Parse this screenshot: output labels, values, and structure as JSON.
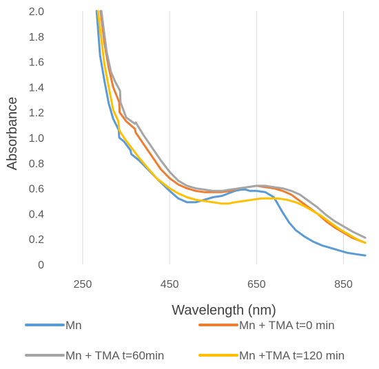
{
  "chart_data": {
    "type": "line",
    "title": "",
    "xlabel": "Wavelength (nm)",
    "ylabel": "Absorbance",
    "xlim": [
      250,
      900
    ],
    "ylim": [
      0,
      2.0
    ],
    "x_ticks": [
      "250",
      "450",
      "650",
      "850"
    ],
    "y_ticks": [
      "0",
      "0.2",
      "0.4",
      "0.6",
      "0.8",
      "1.0",
      "1.2",
      "1.4",
      "1.6",
      "1.8",
      "2.0"
    ],
    "grid": "vertical",
    "legend_position": "bottom",
    "series": [
      {
        "name": "Mn",
        "color": "#5B9BD5",
        "x": [
          282,
          290,
          300,
          310,
          320,
          333,
          334,
          345,
          360,
          362,
          380,
          400,
          420,
          450,
          470,
          490,
          510,
          530,
          550,
          570,
          585,
          600,
          615,
          625,
          635,
          650,
          670,
          690,
          700,
          710,
          725,
          740,
          760,
          780,
          800,
          820,
          840,
          860,
          880,
          900
        ],
        "y": [
          2.0,
          1.65,
          1.45,
          1.27,
          1.15,
          1.06,
          1.0,
          0.97,
          0.9,
          0.87,
          0.82,
          0.75,
          0.68,
          0.58,
          0.52,
          0.49,
          0.49,
          0.51,
          0.53,
          0.54,
          0.56,
          0.58,
          0.59,
          0.59,
          0.58,
          0.58,
          0.57,
          0.53,
          0.47,
          0.41,
          0.33,
          0.27,
          0.22,
          0.18,
          0.15,
          0.13,
          0.11,
          0.09,
          0.08,
          0.07
        ]
      },
      {
        "name": "Mn + TMA t=0 min",
        "color": "#ED7D31",
        "x": [
          291,
          300,
          310,
          320,
          334,
          335,
          350,
          370,
          372,
          390,
          410,
          430,
          450,
          470,
          490,
          510,
          530,
          550,
          570,
          590,
          610,
          630,
          650,
          670,
          690,
          710,
          730,
          750,
          770,
          790,
          810,
          830,
          850,
          870,
          900
        ],
        "y": [
          2.0,
          1.75,
          1.55,
          1.4,
          1.28,
          1.2,
          1.13,
          1.07,
          1.04,
          0.95,
          0.85,
          0.75,
          0.68,
          0.63,
          0.6,
          0.58,
          0.57,
          0.57,
          0.57,
          0.58,
          0.6,
          0.61,
          0.62,
          0.61,
          0.6,
          0.58,
          0.55,
          0.5,
          0.45,
          0.4,
          0.34,
          0.29,
          0.25,
          0.21,
          0.17
        ]
      },
      {
        "name": "Mn + TMA t=60min",
        "color": "#A5A5A5",
        "x": [
          293,
          305,
          315,
          325,
          336,
          337,
          350,
          370,
          372,
          390,
          410,
          430,
          450,
          470,
          490,
          510,
          530,
          550,
          570,
          590,
          610,
          630,
          650,
          670,
          690,
          710,
          730,
          750,
          770,
          790,
          810,
          830,
          850,
          870,
          900
        ],
        "y": [
          2.0,
          1.68,
          1.52,
          1.44,
          1.37,
          1.28,
          1.16,
          1.11,
          1.12,
          1.02,
          0.92,
          0.82,
          0.73,
          0.66,
          0.62,
          0.6,
          0.59,
          0.58,
          0.58,
          0.59,
          0.6,
          0.61,
          0.62,
          0.62,
          0.61,
          0.6,
          0.58,
          0.55,
          0.5,
          0.45,
          0.39,
          0.34,
          0.3,
          0.26,
          0.21
        ]
      },
      {
        "name": "Mn +TMA t=120 min",
        "color": "#FFC000",
        "x": [
          285,
          300,
          310,
          320,
          332,
          334,
          345,
          360,
          380,
          400,
          420,
          450,
          470,
          490,
          510,
          530,
          550,
          570,
          585,
          600,
          620,
          640,
          660,
          680,
          700,
          720,
          740,
          760,
          780,
          800,
          820,
          840,
          860,
          880,
          900
        ],
        "y": [
          2.0,
          1.58,
          1.4,
          1.22,
          1.13,
          1.06,
          1.0,
          0.93,
          0.84,
          0.76,
          0.68,
          0.6,
          0.56,
          0.53,
          0.51,
          0.5,
          0.49,
          0.48,
          0.48,
          0.49,
          0.5,
          0.51,
          0.52,
          0.52,
          0.52,
          0.51,
          0.49,
          0.46,
          0.42,
          0.38,
          0.33,
          0.28,
          0.24,
          0.2,
          0.17
        ]
      }
    ]
  }
}
